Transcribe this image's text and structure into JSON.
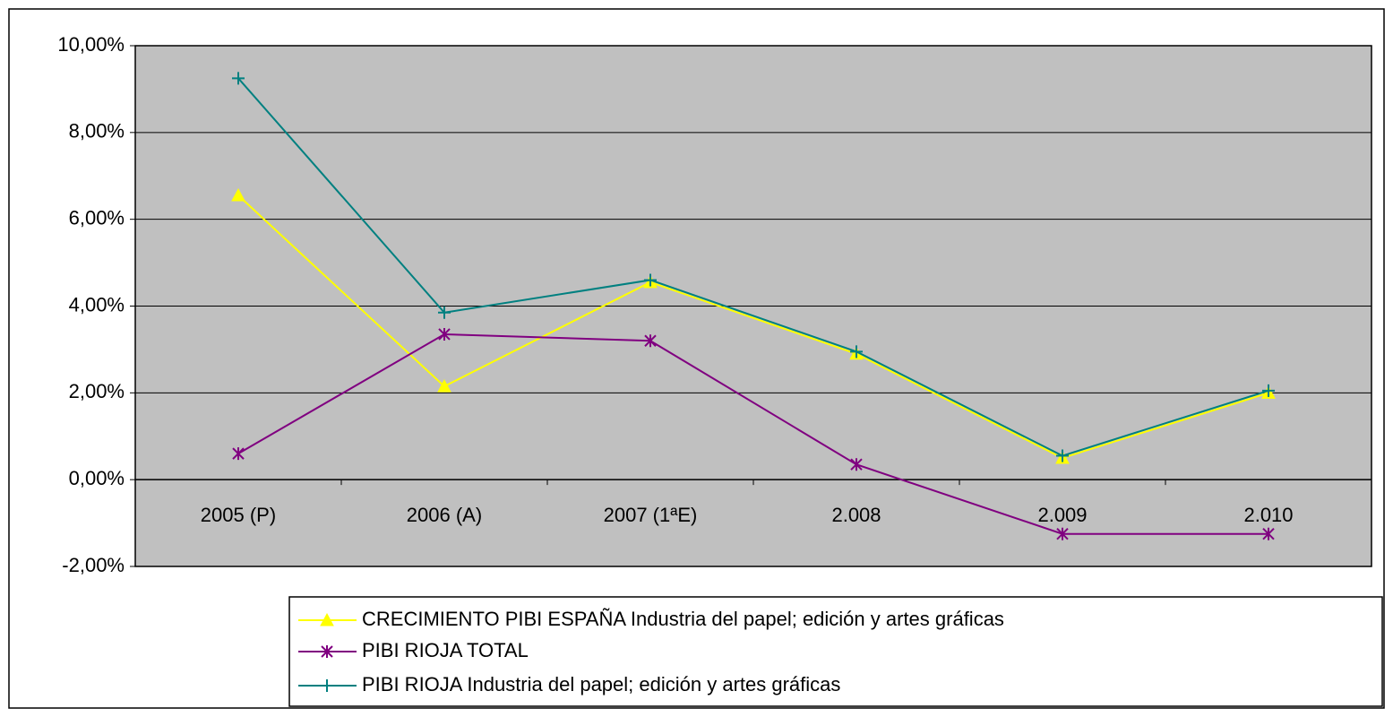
{
  "chart_data": {
    "type": "line",
    "categories": [
      "2005 (P)",
      "2006 (A)",
      "2007 (1ªE)",
      "2.008",
      "2.009",
      "2.010"
    ],
    "series": [
      {
        "name": "CRECIMIENTO PIBI ESPAÑA Industria del papel; edición y artes gráficas",
        "color": "#ffff00",
        "marker": "triangle",
        "values": [
          6.55,
          2.15,
          4.55,
          2.9,
          0.5,
          2.0
        ]
      },
      {
        "name": "PIBI RIOJA TOTAL",
        "color": "#800080",
        "marker": "asterisk",
        "values": [
          0.6,
          3.35,
          3.2,
          0.35,
          -1.25,
          -1.25
        ]
      },
      {
        "name": "PIBI RIOJA Industria del papel; edición y artes gráficas",
        "color": "#008080",
        "marker": "plus",
        "values": [
          9.25,
          3.85,
          4.6,
          2.95,
          0.55,
          2.05
        ]
      }
    ],
    "ylim": [
      -2,
      10
    ],
    "yticks": [
      {
        "value": -2,
        "label": "-2,00%"
      },
      {
        "value": 0,
        "label": "0,00%"
      },
      {
        "value": 2,
        "label": "2,00%"
      },
      {
        "value": 4,
        "label": "4,00%"
      },
      {
        "value": 6,
        "label": "6,00%"
      },
      {
        "value": 8,
        "label": "8,00%"
      },
      {
        "value": 10,
        "label": "10,00%"
      }
    ],
    "grid": true,
    "background": "#c0c0c0",
    "legend": "bottom"
  }
}
